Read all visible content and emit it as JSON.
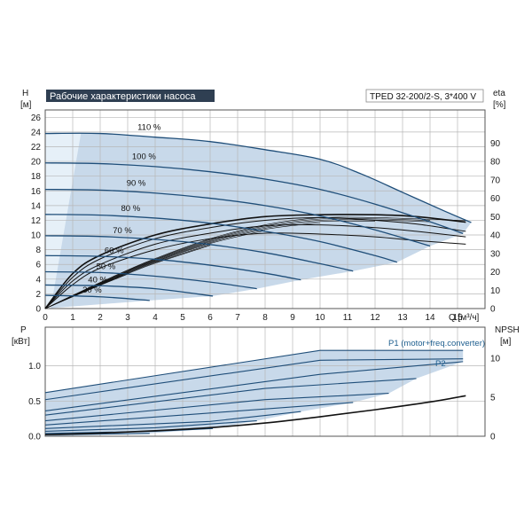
{
  "colors": {
    "curve": "#1f4e79",
    "envelope": "#c8d9ea",
    "envelope_light": "#e6f0f8",
    "efficiency": "#111111",
    "grid": "#b7b7b7",
    "title_bg": "#2f3f52",
    "npsh": "#111111",
    "legend": "#1f5f8f"
  },
  "header": {
    "title": "Рабочие характеристики насоса",
    "model": "TPED 32-200/2-S, 3*400 V"
  },
  "chart_data": [
    {
      "type": "line",
      "axes": {
        "left_label_1": "H",
        "left_label_2": "[м]",
        "right_label_1": "eta",
        "right_label_2": "[%]",
        "x_label": "Q [м³/ч]"
      },
      "xlim": [
        0,
        16
      ],
      "ylim": [
        0,
        27
      ],
      "y2lim": [
        0,
        108
      ],
      "x_ticks": [
        0,
        1,
        2,
        3,
        4,
        5,
        6,
        7,
        8,
        9,
        10,
        11,
        12,
        13,
        14,
        15
      ],
      "y_ticks": [
        0,
        2,
        4,
        6,
        8,
        10,
        12,
        14,
        16,
        18,
        20,
        22,
        24,
        26
      ],
      "y2_ticks": [
        0,
        10,
        20,
        30,
        40,
        50,
        60,
        70,
        80,
        90
      ],
      "speed_labels": [
        "110 %",
        "100 %",
        "90 %",
        "80 %",
        "70 %",
        "60 %",
        "50 %",
        "40 %",
        "30 %"
      ],
      "series": [
        {
          "label": "110 %",
          "q": [
            0,
            2,
            4,
            6,
            8,
            10,
            11.5,
            13,
            14.5,
            15.5
          ],
          "h": [
            23.8,
            23.8,
            23.3,
            22.7,
            21.6,
            20.3,
            18.3,
            15.8,
            13.3,
            11.7
          ]
        },
        {
          "label": "100 %",
          "q": [
            0,
            2,
            4,
            6,
            8,
            10,
            12,
            14,
            15.2
          ],
          "h": [
            19.8,
            19.7,
            19.3,
            18.6,
            17.6,
            16.2,
            14.2,
            11.8,
            10.2
          ]
        },
        {
          "label": "90 %",
          "q": [
            0,
            2,
            4,
            6,
            8,
            10,
            12,
            14
          ],
          "h": [
            16.2,
            16.1,
            15.7,
            15.0,
            14.0,
            12.6,
            10.7,
            8.5
          ]
        },
        {
          "label": "80 %",
          "q": [
            0,
            2,
            4,
            6,
            8,
            10,
            12,
            12.8
          ],
          "h": [
            12.8,
            12.7,
            12.3,
            11.6,
            10.5,
            9.1,
            7.2,
            6.3
          ]
        },
        {
          "label": "70 %",
          "q": [
            0,
            2,
            4,
            6,
            8,
            10,
            11.2
          ],
          "h": [
            9.9,
            9.8,
            9.4,
            8.7,
            7.6,
            6.1,
            5.1
          ]
        },
        {
          "label": "60 %",
          "q": [
            0,
            2,
            4,
            6,
            8,
            9.3
          ],
          "h": [
            7.2,
            7.1,
            6.7,
            5.9,
            4.8,
            3.9
          ]
        },
        {
          "label": "50 %",
          "q": [
            0,
            2,
            4,
            6,
            7.7
          ],
          "h": [
            5.0,
            4.9,
            4.4,
            3.6,
            2.7
          ]
        },
        {
          "label": "40 %",
          "q": [
            0,
            2,
            4,
            6.1
          ],
          "h": [
            3.2,
            3.1,
            2.7,
            1.7
          ]
        },
        {
          "label": "30 %",
          "q": [
            0,
            2,
            3.8
          ],
          "h": [
            1.8,
            1.6,
            1.1
          ]
        }
      ],
      "efficiency": [
        {
          "q": [
            0,
            1,
            2,
            4,
            6,
            8,
            10,
            12,
            13.5,
            15.3
          ],
          "eta": [
            0,
            19,
            29,
            40,
            46,
            50,
            51,
            51,
            50,
            47
          ]
        },
        {
          "q": [
            0,
            1,
            2,
            4,
            6,
            8,
            10,
            12,
            13.5,
            15.3
          ],
          "eta": [
            0,
            17,
            27,
            38,
            44,
            48,
            49.5,
            48,
            46,
            42
          ]
        },
        {
          "q": [
            0,
            1,
            2,
            4,
            6,
            8,
            10,
            12,
            13.5,
            15.3
          ],
          "eta": [
            0,
            15,
            24,
            35,
            41,
            45,
            45.5,
            44,
            42,
            39
          ]
        },
        {
          "q": [
            0,
            1,
            2,
            4,
            6,
            8,
            10,
            12,
            13.5,
            15.3
          ],
          "eta": [
            0,
            13,
            22,
            32,
            38,
            41,
            40.5,
            39,
            37,
            35
          ]
        }
      ]
    },
    {
      "type": "line",
      "axes": {
        "left_label_1": "P",
        "left_label_2": "[кВт]",
        "right_label_1": "NPSH",
        "right_label_2": "[м]"
      },
      "xlim": [
        0,
        16
      ],
      "ylim": [
        0,
        1.55
      ],
      "y2lim": [
        0,
        14
      ],
      "y_ticks": [
        0.0,
        0.5,
        1.0
      ],
      "y2_ticks": [
        0,
        5,
        10
      ],
      "legend": [
        "P1 (motor+freq.converter)",
        "P2"
      ],
      "power_series": [
        {
          "q": [
            0,
            10,
            15.2
          ],
          "p": [
            0.62,
            1.22,
            1.22
          ]
        },
        {
          "q": [
            0,
            10,
            15.2
          ],
          "p": [
            0.52,
            1.08,
            1.1
          ]
        },
        {
          "q": [
            0,
            10,
            15.2
          ],
          "p": [
            0.36,
            0.88,
            1.06
          ]
        },
        {
          "q": [
            0,
            8,
            13.5
          ],
          "p": [
            0.3,
            0.68,
            0.82
          ]
        },
        {
          "q": [
            0,
            8,
            12.5
          ],
          "p": [
            0.22,
            0.52,
            0.61
          ]
        },
        {
          "q": [
            0,
            6,
            11.2
          ],
          "p": [
            0.16,
            0.33,
            0.48
          ]
        },
        {
          "q": [
            0,
            6,
            9.3
          ],
          "p": [
            0.11,
            0.21,
            0.35
          ]
        },
        {
          "q": [
            0,
            4,
            7.7
          ],
          "p": [
            0.07,
            0.12,
            0.22
          ]
        },
        {
          "q": [
            0,
            4,
            6.1
          ],
          "p": [
            0.04,
            0.07,
            0.11
          ]
        },
        {
          "q": [
            0,
            2,
            3.8
          ],
          "p": [
            0.02,
            0.03,
            0.04
          ]
        }
      ],
      "npsh": {
        "q": [
          0,
          2,
          4,
          6,
          8,
          10,
          12,
          14,
          15.3
        ],
        "npsh": [
          0.2,
          0.4,
          0.7,
          1.1,
          1.7,
          2.5,
          3.4,
          4.4,
          5.2
        ]
      }
    }
  ]
}
